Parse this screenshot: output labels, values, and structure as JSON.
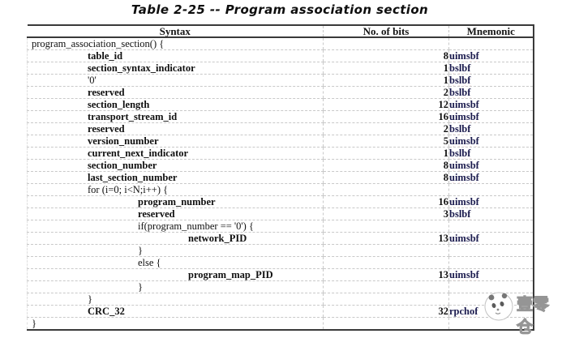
{
  "title": "Table 2-25 -- Program association section",
  "table": {
    "columns": [
      "Syntax",
      "No. of bits",
      "Mnemonic"
    ],
    "rows": [
      {
        "syntax": "program_association_section() {",
        "indent": 0,
        "bold": false,
        "bits": "",
        "mnemonic": ""
      },
      {
        "syntax": "table_id",
        "indent": 1,
        "bold": true,
        "bits": "8",
        "mnemonic": "uimsbf"
      },
      {
        "syntax": "section_syntax_indicator",
        "indent": 1,
        "bold": true,
        "bits": "1",
        "mnemonic": "bslbf"
      },
      {
        "syntax": "'0'",
        "indent": 1,
        "bold": false,
        "bits": "1",
        "mnemonic": "bslbf"
      },
      {
        "syntax": "reserved",
        "indent": 1,
        "bold": true,
        "bits": "2",
        "mnemonic": "bslbf"
      },
      {
        "syntax": "section_length",
        "indent": 1,
        "bold": true,
        "bits": "12",
        "mnemonic": "uimsbf"
      },
      {
        "syntax": "transport_stream_id",
        "indent": 1,
        "bold": true,
        "bits": "16",
        "mnemonic": "uimsbf"
      },
      {
        "syntax": "reserved",
        "indent": 1,
        "bold": true,
        "bits": "2",
        "mnemonic": "bslbf"
      },
      {
        "syntax": "version_number",
        "indent": 1,
        "bold": true,
        "bits": "5",
        "mnemonic": "uimsbf"
      },
      {
        "syntax": "current_next_indicator",
        "indent": 1,
        "bold": true,
        "bits": "1",
        "mnemonic": "bslbf"
      },
      {
        "syntax": "section_number",
        "indent": 1,
        "bold": true,
        "bits": "8",
        "mnemonic": "uimsbf"
      },
      {
        "syntax": "last_section_number",
        "indent": 1,
        "bold": true,
        "bits": "8",
        "mnemonic": "uimsbf"
      },
      {
        "syntax": "for (i=0; i<N;i++) {",
        "indent": 1,
        "bold": false,
        "bits": "",
        "mnemonic": ""
      },
      {
        "syntax": "program_number",
        "indent": 2,
        "bold": true,
        "bits": "16",
        "mnemonic": "uimsbf"
      },
      {
        "syntax": "reserved",
        "indent": 2,
        "bold": true,
        "bits": "3",
        "mnemonic": "bslbf"
      },
      {
        "syntax": "if(program_number == '0') {",
        "indent": 2,
        "bold": false,
        "bits": "",
        "mnemonic": ""
      },
      {
        "syntax": "network_PID",
        "indent": 3,
        "bold": true,
        "bits": "13",
        "mnemonic": "uimsbf"
      },
      {
        "syntax": "}",
        "indent": 2,
        "bold": false,
        "bits": "",
        "mnemonic": ""
      },
      {
        "syntax": "else {",
        "indent": 2,
        "bold": false,
        "bits": "",
        "mnemonic": ""
      },
      {
        "syntax": "program_map_PID",
        "indent": 3,
        "bold": true,
        "bits": "13",
        "mnemonic": "uimsbf"
      },
      {
        "syntax": "}",
        "indent": 2,
        "bold": false,
        "bits": "",
        "mnemonic": ""
      },
      {
        "syntax": "}",
        "indent": 1,
        "bold": false,
        "bits": "",
        "mnemonic": ""
      },
      {
        "syntax": "CRC_32",
        "indent": 1,
        "bold": true,
        "bits": "32",
        "mnemonic": "rpchof"
      },
      {
        "syntax": "}",
        "indent": 0,
        "bold": false,
        "bits": "",
        "mnemonic": ""
      }
    ]
  },
  "watermark": {
    "text": "壹零仓",
    "logo": "panda-face"
  },
  "colors": {
    "border_dark": "#3a3a3a",
    "grid_dashed": "#c9c9c9",
    "mnemonic_text": "#1b1b4e",
    "spellcheck_underline": "#e04038",
    "body_text": "#101010"
  }
}
